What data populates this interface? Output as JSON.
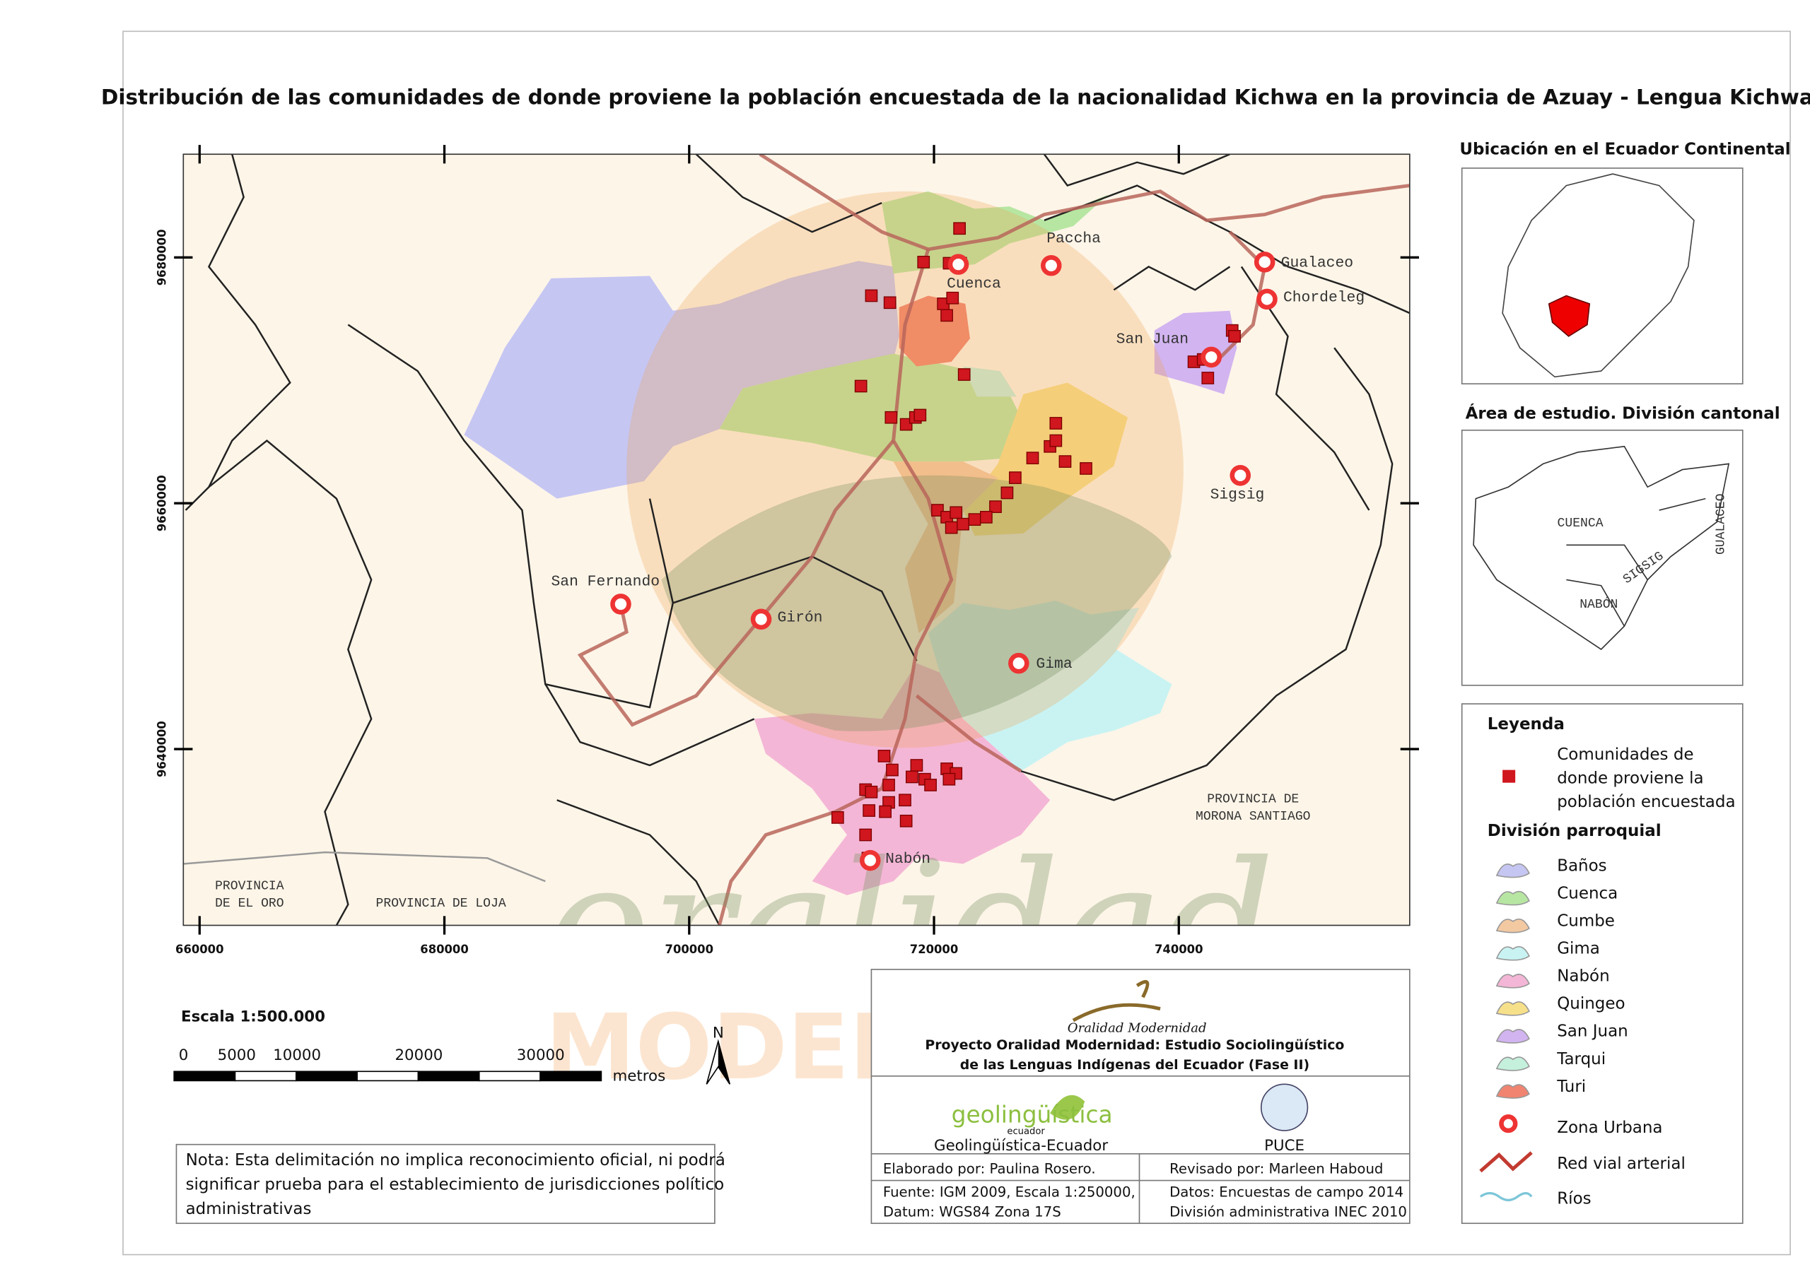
{
  "title": "Distribución de las comunidades de donde proviene la población encuestada de la nacionalidad Kichwa en la provincia de Azuay - Lengua Kichwa",
  "map": {
    "x_ticks": [
      "660000",
      "680000",
      "700000",
      "720000",
      "740000"
    ],
    "y_ticks": [
      "9680000",
      "9660000",
      "9640000"
    ],
    "places": [
      "Cuenca",
      "Paccha",
      "Gualaceo",
      "Chordeleg",
      "San Juan",
      "Sigsig",
      "San Fernando",
      "Girón",
      "Gima",
      "Nabón"
    ],
    "region_labels": [
      [
        "PROVINCIA",
        "DE EL ORO"
      ],
      [
        "PROVINCIA DE LOJA"
      ],
      [
        "PROVINCIA DE",
        "MORONA SANTIAGO"
      ]
    ],
    "watermark": [
      "oralidad",
      "MODERNIDAD"
    ]
  },
  "scale": {
    "title": "Escala 1:500.000",
    "ticks": [
      "0",
      "5000",
      "10000",
      "20000",
      "30000"
    ],
    "unit": "metros",
    "north": "N"
  },
  "note": [
    "Nota: Esta delimitación no implica reconocimiento oficial, ni podrá",
    "significar prueba para el establecimiento de jurisdicciones político",
    "administrativas"
  ],
  "inset_location": {
    "title": "Ubicación en el Ecuador Continental"
  },
  "inset_study": {
    "title": "Área de estudio. División cantonal",
    "labels": [
      "CUENCA",
      "SIGSIG",
      "NABÓN",
      "GUALACEO"
    ]
  },
  "legend": {
    "title": "Leyenda",
    "communities": [
      "Comunidades de",
      "donde proviene la",
      "población encuestada"
    ],
    "parish_title": "División parroquial",
    "parishes": [
      {
        "label": "Baños",
        "color": "#c6c6f3"
      },
      {
        "label": "Cuenca",
        "color": "#b7e6a2"
      },
      {
        "label": "Cumbe",
        "color": "#f3c9a2"
      },
      {
        "label": "Gima",
        "color": "#c9f3f3"
      },
      {
        "label": "Nabón",
        "color": "#f4b6d6"
      },
      {
        "label": "Quingeo",
        "color": "#f7e08a"
      },
      {
        "label": "San Juan",
        "color": "#d2b4f0"
      },
      {
        "label": "Tarqui",
        "color": "#c4f0dc"
      },
      {
        "label": "Turi",
        "color": "#f08470"
      }
    ],
    "urban": "Zona Urbana",
    "road": "Red vial arterial",
    "rivers": "Ríos"
  },
  "credits": {
    "logo": "Oralidad Modernidad",
    "project": [
      "Proyecto Oralidad Modernidad: Estudio Sociolingüístico",
      "de las Lenguas Indígenas del Ecuador  (Fase II)"
    ],
    "geo_logo": "geolingüística",
    "geo_logo_sub": "ecuador",
    "geo": "Geolingüística-Ecuador",
    "puce": "PUCE",
    "made_by": "Elaborado por: Paulina Rosero.",
    "reviewed_by": "Revisado por: Marleen Haboud",
    "source": [
      "Fuente: IGM 2009, Escala 1:250000,",
      "Datum: WGS84 Zona 17S"
    ],
    "data": [
      "Datos: Encuestas de campo 2014",
      "División administrativa INEC 2010"
    ]
  }
}
